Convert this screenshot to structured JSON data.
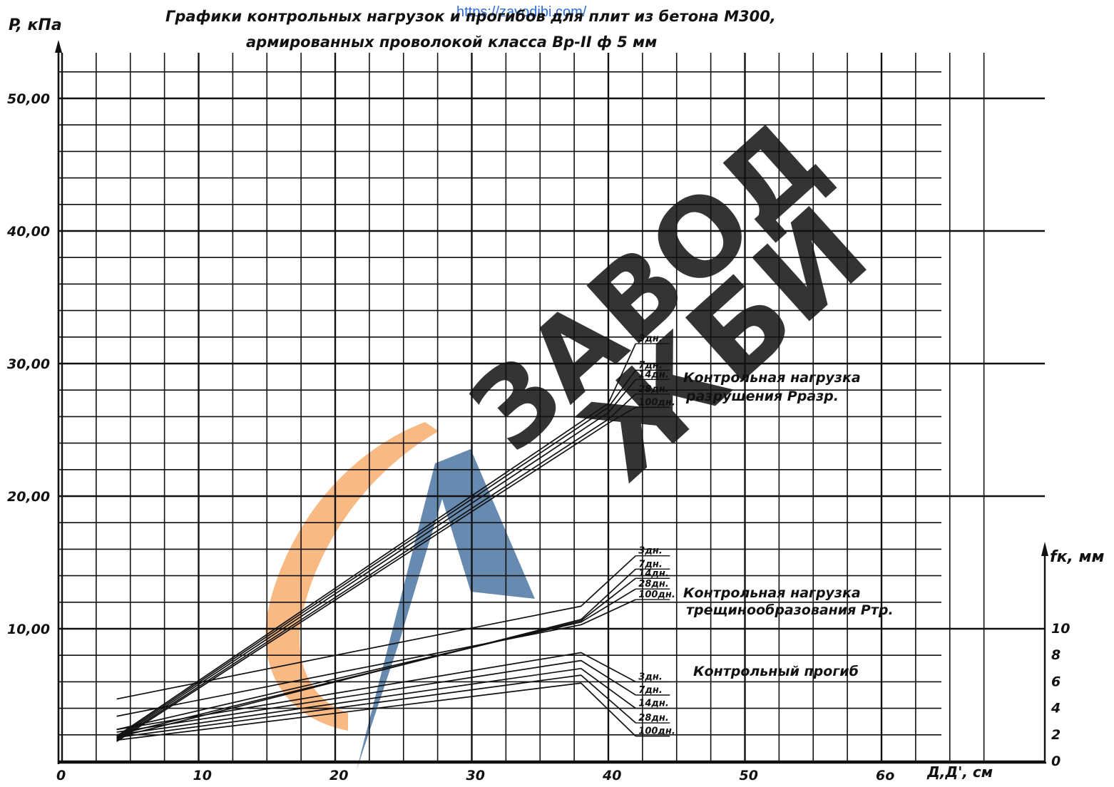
{
  "source_link": "https://zavodjbi.com/",
  "watermark": {
    "line1": "ЗАВОД",
    "line2": "ЖБИ",
    "blue": "#4c76a2",
    "orange": "#f5a15a"
  },
  "chart_data": {
    "type": "line",
    "title_line1": "Графики контрольных нагрузок и прогибов для плит из бетона М300,",
    "title_line2": "армированных проволокой класса Вр-II ф 5 мм",
    "ylabel": "P, кПа",
    "ylabel_right": "fк, мм",
    "xlabel": "Д,Д', см",
    "xlim": [
      0,
      75
    ],
    "ylim": [
      -0.5,
      52.5
    ],
    "x_ticks": [
      0,
      10,
      20,
      30,
      40,
      50,
      60
    ],
    "x_tick_labels": [
      "0",
      "10",
      "20",
      "30",
      "40",
      "50",
      "6о"
    ],
    "y_ticks": [
      10,
      20,
      30,
      40,
      50
    ],
    "y_tick_labels": [
      "10,00",
      "20,00",
      "30,00",
      "40,00",
      "50,00"
    ],
    "right_axis": {
      "ticks": [
        0,
        2,
        4,
        6,
        8,
        10
      ],
      "labels": [
        "0",
        "2",
        "4",
        "6",
        "8",
        "10"
      ],
      "mm_to_kpa": 1
    },
    "grid": true,
    "groups": [
      {
        "label_line1": "Контрольная нагрузка",
        "label_line2": "разрушения Рразр.",
        "series": [
          {
            "name": "100дн.",
            "x": [
              4,
              40,
              42
            ],
            "y": [
              1.5,
              25.5,
              26.7
            ]
          },
          {
            "name": "28дн.",
            "x": [
              4,
              40,
              42
            ],
            "y": [
              1.6,
              25.8,
              27.7
            ]
          },
          {
            "name": "14дн.",
            "x": [
              4,
              40,
              42
            ],
            "y": [
              1.7,
              26.3,
              28.8
            ]
          },
          {
            "name": "7дн.",
            "x": [
              4,
              40,
              42
            ],
            "y": [
              1.8,
              26.7,
              29.5
            ]
          },
          {
            "name": "3дн.",
            "x": [
              4,
              40,
              42
            ],
            "y": [
              1.9,
              27.0,
              31.5
            ]
          }
        ]
      },
      {
        "label_line1": "Контрольная нагрузка",
        "label_line2": "трещинообразования Ртр.",
        "series": [
          {
            "name": "100дн.",
            "x": [
              4,
              38,
              42
            ],
            "y": [
              3.4,
              10.3,
              12.2
            ]
          },
          {
            "name": "28дн.",
            "x": [
              4,
              38,
              42
            ],
            "y": [
              2.4,
              10.5,
              13.0
            ]
          },
          {
            "name": "14дн.",
            "x": [
              4,
              38,
              42
            ],
            "y": [
              2.0,
              10.6,
              13.8
            ]
          },
          {
            "name": "7дн.",
            "x": [
              4,
              38,
              42
            ],
            "y": [
              1.8,
              10.7,
              14.5
            ]
          },
          {
            "name": "3дн.",
            "x": [
              4,
              38,
              42
            ],
            "y": [
              4.7,
              11.7,
              15.5
            ]
          }
        ]
      },
      {
        "label_line1": "Контрольный прогиб",
        "label_line2": "",
        "series": [
          {
            "name": "3дн.",
            "x": [
              4,
              38,
              42
            ],
            "y": [
              2.4,
              8.2,
              6.0
            ]
          },
          {
            "name": "7дн.",
            "x": [
              4,
              38,
              42
            ],
            "y": [
              2.2,
              7.6,
              5.0
            ]
          },
          {
            "name": "14дн.",
            "x": [
              4,
              38,
              42
            ],
            "y": [
              2.0,
              7.0,
              4.0
            ]
          },
          {
            "name": "28дн.",
            "x": [
              4,
              38,
              42
            ],
            "y": [
              1.8,
              6.5,
              2.9
            ]
          },
          {
            "name": "100дн.",
            "x": [
              4,
              38,
              42
            ],
            "y": [
              1.6,
              5.9,
              1.9
            ]
          }
        ]
      }
    ]
  }
}
